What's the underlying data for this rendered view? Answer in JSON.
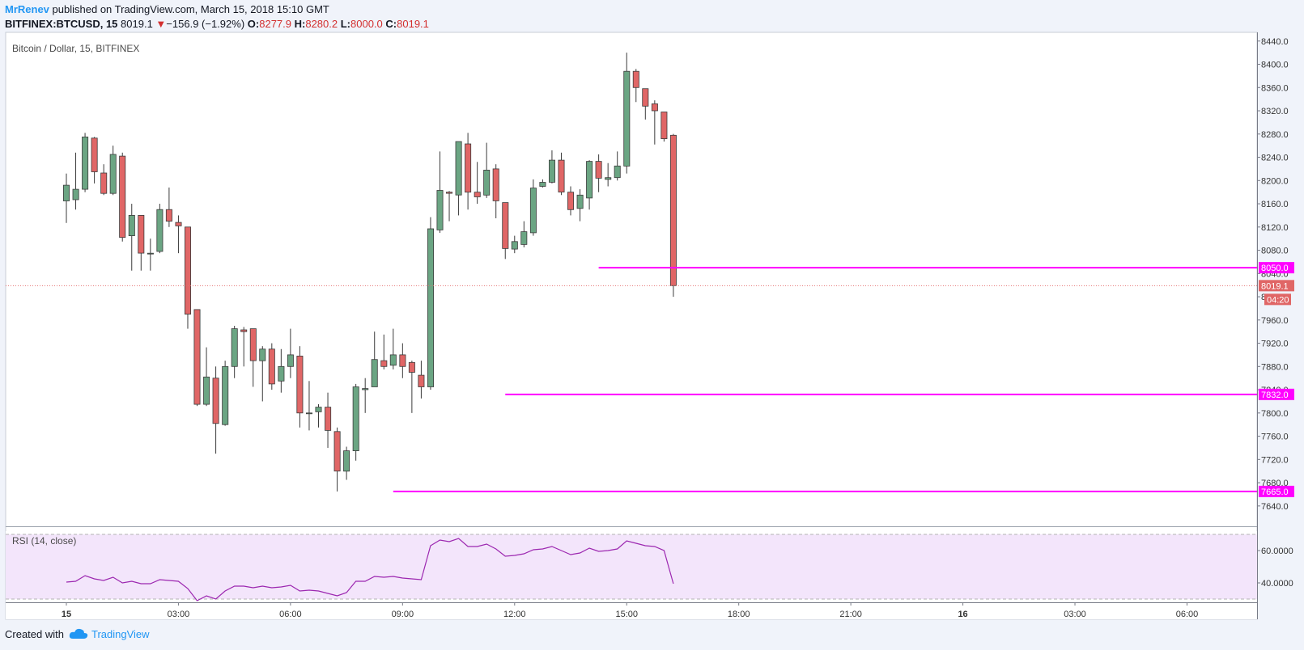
{
  "header": {
    "author": "MrRenev",
    "published_text": "published on TradingView.com, March 15, 2018 15:10 GMT",
    "symbol": "BITFINEX:BTCUSD, 15",
    "last": "8019.1",
    "change": "−156.9 (−1.92%)",
    "o_label": "O:",
    "o_value": "8277.9",
    "h_label": "H:",
    "h_value": "8280.2",
    "l_label": "L:",
    "l_value": "8000.0",
    "c_label": "C:",
    "c_value": "8019.1"
  },
  "legend": {
    "main": "Bitcoin / Dollar, 15, BITFINEX",
    "rsi": "RSI (14, close)"
  },
  "colors": {
    "up": "#6ba583",
    "down": "#e06666",
    "level": "#ff00ff",
    "rsi_line": "#9c27b0",
    "rsi_bg": "#f3e5fb",
    "price_line": "#e57373"
  },
  "footer": {
    "created_with": "Created with",
    "brand": "TradingView"
  },
  "chart_data": {
    "type": "candlestick",
    "price_axis": {
      "range": [
        7605,
        8455
      ],
      "ticks": [
        "8440.0",
        "8400.0",
        "8360.0",
        "8320.0",
        "8280.0",
        "8240.0",
        "8200.0",
        "8160.0",
        "8120.0",
        "8080.0",
        "8040.0",
        "8000.0",
        "7960.0",
        "7920.0",
        "7880.0",
        "7840.0",
        "7800.0",
        "7760.0",
        "7720.0",
        "7680.0",
        "7640.0"
      ]
    },
    "time_axis": {
      "bar_index_range": [
        -6.5,
        127.5
      ],
      "labels": [
        {
          "bar": 0,
          "text": "15",
          "bold": true
        },
        {
          "bar": 12,
          "text": "03:00"
        },
        {
          "bar": 24,
          "text": "06:00"
        },
        {
          "bar": 36,
          "text": "09:00"
        },
        {
          "bar": 48,
          "text": "12:00"
        },
        {
          "bar": 60,
          "text": "15:00"
        },
        {
          "bar": 72,
          "text": "18:00"
        },
        {
          "bar": 84,
          "text": "21:00"
        },
        {
          "bar": 96,
          "text": "16",
          "bold": true
        },
        {
          "bar": 108,
          "text": "03:00"
        },
        {
          "bar": 120,
          "text": "06:00"
        }
      ]
    },
    "candles": [
      {
        "o": 8165,
        "h": 8212,
        "l": 8127,
        "c": 8192
      },
      {
        "o": 8167,
        "h": 8248,
        "l": 8150,
        "c": 8185
      },
      {
        "o": 8185,
        "h": 8282,
        "l": 8180,
        "c": 8275
      },
      {
        "o": 8273,
        "h": 8275,
        "l": 8195,
        "c": 8215
      },
      {
        "o": 8213,
        "h": 8228,
        "l": 8175,
        "c": 8178
      },
      {
        "o": 8178,
        "h": 8260,
        "l": 8175,
        "c": 8245
      },
      {
        "o": 8242,
        "h": 8248,
        "l": 8095,
        "c": 8102
      },
      {
        "o": 8105,
        "h": 8160,
        "l": 8045,
        "c": 8140
      },
      {
        "o": 8140,
        "h": 8140,
        "l": 8045,
        "c": 8075
      },
      {
        "o": 8075,
        "h": 8100,
        "l": 8045,
        "c": 8075
      },
      {
        "o": 8078,
        "h": 8160,
        "l": 8075,
        "c": 8150
      },
      {
        "o": 8150,
        "h": 8188,
        "l": 8120,
        "c": 8130
      },
      {
        "o": 8128,
        "h": 8140,
        "l": 8075,
        "c": 8122
      },
      {
        "o": 8120,
        "h": 8120,
        "l": 7945,
        "c": 7970
      },
      {
        "o": 7978,
        "h": 7978,
        "l": 7812,
        "c": 7815
      },
      {
        "o": 7815,
        "h": 7913,
        "l": 7812,
        "c": 7862
      },
      {
        "o": 7860,
        "h": 7880,
        "l": 7730,
        "c": 7782
      },
      {
        "o": 7780,
        "h": 7890,
        "l": 7778,
        "c": 7880
      },
      {
        "o": 7880,
        "h": 7950,
        "l": 7860,
        "c": 7945
      },
      {
        "o": 7943,
        "h": 7948,
        "l": 7880,
        "c": 7940
      },
      {
        "o": 7945,
        "h": 7945,
        "l": 7845,
        "c": 7890
      },
      {
        "o": 7890,
        "h": 7915,
        "l": 7820,
        "c": 7910
      },
      {
        "o": 7910,
        "h": 7920,
        "l": 7840,
        "c": 7850
      },
      {
        "o": 7855,
        "h": 7910,
        "l": 7835,
        "c": 7880
      },
      {
        "o": 7880,
        "h": 7945,
        "l": 7860,
        "c": 7900
      },
      {
        "o": 7898,
        "h": 7915,
        "l": 7775,
        "c": 7800
      },
      {
        "o": 7800,
        "h": 7855,
        "l": 7770,
        "c": 7800
      },
      {
        "o": 7802,
        "h": 7815,
        "l": 7775,
        "c": 7810
      },
      {
        "o": 7810,
        "h": 7835,
        "l": 7740,
        "c": 7770
      },
      {
        "o": 7768,
        "h": 7775,
        "l": 7665,
        "c": 7700
      },
      {
        "o": 7700,
        "h": 7742,
        "l": 7685,
        "c": 7735
      },
      {
        "o": 7735,
        "h": 7850,
        "l": 7718,
        "c": 7845
      },
      {
        "o": 7840,
        "h": 7860,
        "l": 7800,
        "c": 7842
      },
      {
        "o": 7845,
        "h": 7940,
        "l": 7845,
        "c": 7892
      },
      {
        "o": 7890,
        "h": 7935,
        "l": 7875,
        "c": 7880
      },
      {
        "o": 7882,
        "h": 7945,
        "l": 7875,
        "c": 7900
      },
      {
        "o": 7900,
        "h": 7920,
        "l": 7860,
        "c": 7880
      },
      {
        "o": 7887,
        "h": 7890,
        "l": 7800,
        "c": 7870
      },
      {
        "o": 7865,
        "h": 7890,
        "l": 7825,
        "c": 7845
      },
      {
        "o": 7845,
        "h": 8137,
        "l": 7840,
        "c": 8117
      },
      {
        "o": 8115,
        "h": 8250,
        "l": 8110,
        "c": 8183
      },
      {
        "o": 8180,
        "h": 8182,
        "l": 8130,
        "c": 8178
      },
      {
        "o": 8175,
        "h": 8260,
        "l": 8140,
        "c": 8267
      },
      {
        "o": 8263,
        "h": 8282,
        "l": 8150,
        "c": 8180
      },
      {
        "o": 8180,
        "h": 8232,
        "l": 8160,
        "c": 8172
      },
      {
        "o": 8175,
        "h": 8265,
        "l": 8170,
        "c": 8218
      },
      {
        "o": 8220,
        "h": 8228,
        "l": 8135,
        "c": 8165
      },
      {
        "o": 8162,
        "h": 8160,
        "l": 8065,
        "c": 8083
      },
      {
        "o": 8082,
        "h": 8105,
        "l": 8075,
        "c": 8095
      },
      {
        "o": 8090,
        "h": 8130,
        "l": 8085,
        "c": 8112
      },
      {
        "o": 8110,
        "h": 8202,
        "l": 8105,
        "c": 8187
      },
      {
        "o": 8190,
        "h": 8202,
        "l": 8188,
        "c": 8197
      },
      {
        "o": 8197,
        "h": 8252,
        "l": 8195,
        "c": 8235
      },
      {
        "o": 8235,
        "h": 8248,
        "l": 8175,
        "c": 8180
      },
      {
        "o": 8180,
        "h": 8190,
        "l": 8140,
        "c": 8150
      },
      {
        "o": 8152,
        "h": 8185,
        "l": 8130,
        "c": 8175
      },
      {
        "o": 8170,
        "h": 8235,
        "l": 8150,
        "c": 8233
      },
      {
        "o": 8233,
        "h": 8245,
        "l": 8180,
        "c": 8204
      },
      {
        "o": 8202,
        "h": 8230,
        "l": 8190,
        "c": 8205
      },
      {
        "o": 8205,
        "h": 8250,
        "l": 8200,
        "c": 8225
      },
      {
        "o": 8225,
        "h": 8420,
        "l": 8212,
        "c": 8388
      },
      {
        "o": 8388,
        "h": 8392,
        "l": 8335,
        "c": 8360
      },
      {
        "o": 8358,
        "h": 8358,
        "l": 8305,
        "c": 8328
      },
      {
        "o": 8332,
        "h": 8338,
        "l": 8262,
        "c": 8320
      },
      {
        "o": 8318,
        "h": 8318,
        "l": 8267,
        "c": 8272
      },
      {
        "o": 8277.9,
        "h": 8280.2,
        "l": 8000,
        "c": 8019.1
      }
    ],
    "levels": [
      {
        "price": 8050,
        "label": "8050.0",
        "from_bar": 57
      },
      {
        "price": 7832,
        "label": "7832.0",
        "from_bar": 47
      },
      {
        "price": 7665,
        "label": "7665.0",
        "from_bar": 35
      }
    ],
    "last_price": {
      "price": 8019.1,
      "label": "8019.1",
      "countdown": "04:20"
    },
    "rsi": {
      "range": [
        28,
        72
      ],
      "upper": 70,
      "lower": 30,
      "ticks": [
        "60.0000",
        "40.0000"
      ],
      "values": [
        40.5,
        41,
        44.5,
        42.5,
        41.5,
        43.5,
        40,
        41,
        39.5,
        39.5,
        42,
        41.5,
        41,
        36.5,
        29,
        32,
        30,
        35,
        38,
        38,
        37,
        38,
        37,
        37.5,
        38.5,
        35,
        35.5,
        35,
        33.5,
        32,
        34,
        41,
        41,
        44,
        43.5,
        44,
        43,
        42.5,
        42,
        63,
        66.5,
        65.5,
        67.5,
        62.5,
        62.5,
        64,
        61,
        56.5,
        57,
        58,
        60.5,
        61,
        62.5,
        60,
        57.5,
        58.5,
        61.5,
        59.5,
        60,
        61,
        66,
        64.5,
        63,
        62.5,
        60,
        39.5
      ]
    }
  }
}
